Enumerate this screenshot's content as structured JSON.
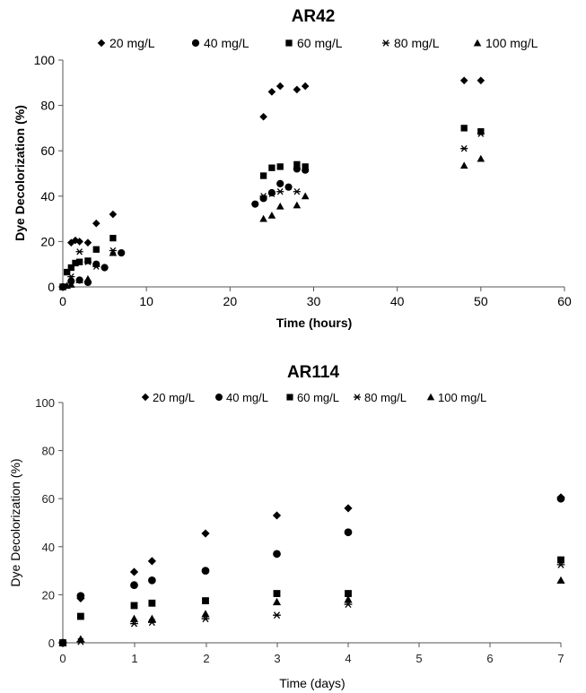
{
  "chart_data": [
    {
      "type": "scatter",
      "title": "AR42",
      "xlabel": "Time (hours)",
      "ylabel": "Dye Decolorization (%)",
      "xlim": [
        0,
        60
      ],
      "ylim": [
        0,
        100
      ],
      "xticks": [
        "0",
        "10",
        "20",
        "30",
        "40",
        "50",
        "60"
      ],
      "yticks": [
        "0",
        "20",
        "40",
        "60",
        "80",
        "100"
      ],
      "legend_position": "top",
      "series": [
        {
          "name": "20 mg/L",
          "marker": "diamond",
          "x": [
            0,
            1,
            1.5,
            2,
            3,
            4,
            6,
            24,
            25,
            26,
            28,
            29,
            48,
            50
          ],
          "y": [
            0,
            19.5,
            20.5,
            20,
            19.5,
            28,
            32,
            75,
            86,
            88.5,
            87,
            88.5,
            91,
            91
          ]
        },
        {
          "name": "40 mg/L",
          "marker": "circle",
          "x": [
            0,
            1,
            2,
            3,
            4,
            5,
            7,
            23,
            24,
            25,
            26,
            27,
            28,
            29
          ],
          "y": [
            0,
            2.5,
            3,
            2,
            10,
            8.5,
            15,
            36.5,
            39,
            41.5,
            45.5,
            44,
            52,
            51.5
          ]
        },
        {
          "name": "60 mg/L",
          "marker": "square",
          "x": [
            0,
            0.5,
            1,
            1.5,
            2,
            3,
            4,
            6,
            24,
            25,
            26,
            28,
            29,
            48,
            50
          ],
          "y": [
            0,
            6.5,
            8.5,
            10.5,
            11,
            11.5,
            16.5,
            21.5,
            49,
            52.5,
            53,
            54,
            53,
            70,
            68.5
          ]
        },
        {
          "name": "80 mg/L",
          "marker": "star",
          "x": [
            0,
            1,
            2,
            3,
            4,
            6,
            24,
            25,
            26,
            28,
            48,
            50
          ],
          "y": [
            0,
            4.5,
            15.5,
            11,
            9,
            16,
            40,
            41,
            42,
            42,
            61,
            67.5
          ]
        },
        {
          "name": "100 mg/L",
          "marker": "triangle",
          "x": [
            0,
            0.5,
            1,
            2,
            3,
            6,
            24,
            25,
            26,
            28,
            29,
            48,
            50
          ],
          "y": [
            0,
            0.5,
            1,
            3,
            3.5,
            15,
            30,
            31.5,
            35.5,
            36,
            40,
            53.5,
            56.5
          ]
        }
      ]
    },
    {
      "type": "scatter",
      "title": "AR114",
      "xlabel": "Time (days)",
      "ylabel": "Dye Decolorization (%)",
      "ylim": [
        0,
        100
      ],
      "xticks": [
        "0",
        "1",
        "2",
        "3",
        "4",
        "5",
        "6",
        "7"
      ],
      "yticks": [
        "0",
        "20",
        "40",
        "60",
        "80",
        "100"
      ],
      "legend_position": "top",
      "series": [
        {
          "name": "20 mg/L",
          "marker": "diamond",
          "x": [
            0,
            0.25,
            1,
            1.25,
            2,
            3,
            4,
            7
          ],
          "y": [
            0,
            18.5,
            29.5,
            34,
            45.5,
            53,
            56,
            60.5
          ]
        },
        {
          "name": "40 mg/L",
          "marker": "circle",
          "x": [
            0,
            0.25,
            1,
            1.25,
            2,
            3,
            4,
            7
          ],
          "y": [
            0,
            19.5,
            24,
            26,
            30,
            37,
            46,
            60
          ]
        },
        {
          "name": "60 mg/L",
          "marker": "square",
          "x": [
            0,
            0.25,
            1,
            1.25,
            2,
            3,
            4,
            7
          ],
          "y": [
            0,
            11,
            15.5,
            16.5,
            17.5,
            20.5,
            20.5,
            34.5
          ]
        },
        {
          "name": "80 mg/L",
          "marker": "star",
          "x": [
            0,
            0.25,
            1,
            1.25,
            2,
            3,
            4,
            7
          ],
          "y": [
            0,
            0.5,
            8,
            8.5,
            10,
            11.5,
            16,
            32.5
          ]
        },
        {
          "name": "100 mg/L",
          "marker": "triangle",
          "x": [
            0,
            0.25,
            1,
            1.25,
            2,
            3,
            4,
            7
          ],
          "y": [
            0,
            1.5,
            10,
            10,
            12,
            17,
            18,
            26
          ]
        }
      ]
    }
  ]
}
